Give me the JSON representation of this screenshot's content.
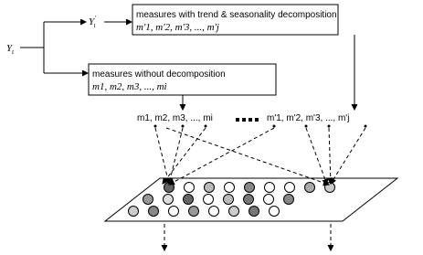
{
  "input": {
    "symbol": "Y",
    "subscript": "t"
  },
  "transformed": {
    "symbol": "Y",
    "prime": "'",
    "subscript": "t"
  },
  "decomposed_box": {
    "title": "measures with trend & seasonality decomposition",
    "measures": "m'1, m'2, m'3, ..., m'j"
  },
  "plain_box": {
    "title": "measures without decomposition",
    "measures": "m1, m2, m3, ..., mi"
  },
  "pool_labels": {
    "plain": "m1, m2, m3, ..., mi",
    "decomposed": "m'1, m'2, m'3, ..., m'j"
  }
}
